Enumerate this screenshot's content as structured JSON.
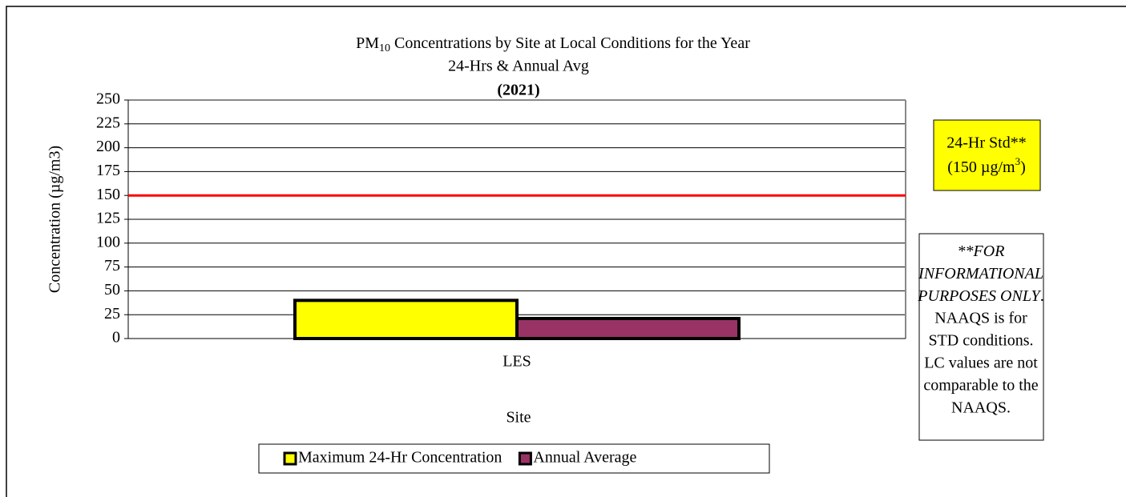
{
  "chart_data": {
    "type": "bar",
    "title": {
      "prefix": "PM",
      "subscript": "10",
      "rest": " Concentrations by Site at Local Conditions for the Year"
    },
    "subtitle": "24-Hrs & Annual Avg",
    "year_label": "(2021)",
    "y_axis_label": "Concentration (µg/m3)",
    "x_axis_label": "Site",
    "categories": [
      "LES"
    ],
    "series": [
      {
        "name": "Maximum 24-Hr Concentration",
        "color": "#ffff00",
        "values": [
          40
        ]
      },
      {
        "name": "Annual Average",
        "color": "#993366",
        "values": [
          21
        ]
      }
    ],
    "ylim": [
      0,
      250
    ],
    "yticks": [
      0,
      25,
      50,
      75,
      100,
      125,
      150,
      175,
      200,
      225,
      250
    ],
    "grid": true,
    "reference_line": {
      "value": 150,
      "color": "#ff0000"
    },
    "standard_label": {
      "line1": "24-Hr Std**",
      "line2_prefix": "(150 µg/m",
      "line2_sup": "3",
      "line2_suffix": ")"
    },
    "note": {
      "italic_lines": [
        "**FOR",
        "INFORMATIONAL",
        "PURPOSES ONLY"
      ],
      "period": ".",
      "lines": [
        "NAAQS is for",
        "STD conditions.",
        "LC values are not",
        "comparable to the",
        "NAAQS."
      ]
    },
    "legend": "bottom"
  }
}
